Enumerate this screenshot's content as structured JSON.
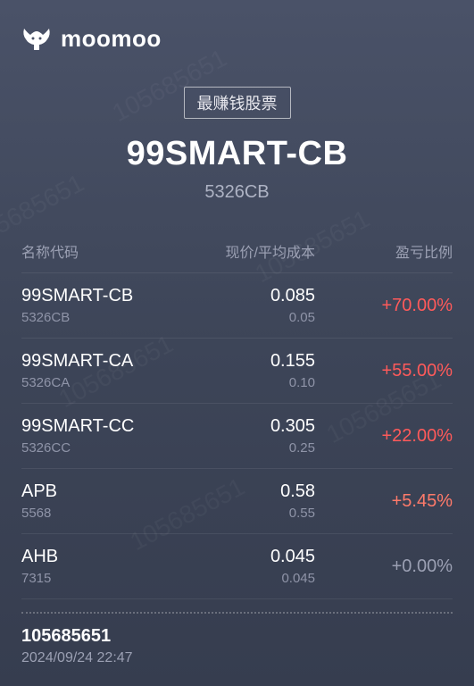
{
  "brand": {
    "name": "moomoo"
  },
  "badge": "最赚钱股票",
  "hero": {
    "title": "99SMART-CB",
    "subtitle": "5326CB"
  },
  "columns": {
    "name": "名称代码",
    "price": "现价/平均成本",
    "ratio": "盈亏比例"
  },
  "colors": {
    "gain_strong": "#ff5a5a",
    "gain_mid": "#ff7a6a",
    "neutral": "#9ba0b3"
  },
  "rows": [
    {
      "name": "99SMART-CB",
      "code": "5326CB",
      "price": "0.085",
      "avg": "0.05",
      "ratio": "+70.00%",
      "ratio_color": "#ff5a5a"
    },
    {
      "name": "99SMART-CA",
      "code": "5326CA",
      "price": "0.155",
      "avg": "0.10",
      "ratio": "+55.00%",
      "ratio_color": "#ff5a5a"
    },
    {
      "name": "99SMART-CC",
      "code": "5326CC",
      "price": "0.305",
      "avg": "0.25",
      "ratio": "+22.00%",
      "ratio_color": "#ff5a5a"
    },
    {
      "name": "APB",
      "code": "5568",
      "price": "0.58",
      "avg": "0.55",
      "ratio": "+5.45%",
      "ratio_color": "#ff7a6a"
    },
    {
      "name": "AHB",
      "code": "7315",
      "price": "0.045",
      "avg": "0.045",
      "ratio": "+0.00%",
      "ratio_color": "#9ba0b3"
    }
  ],
  "footer": {
    "id": "105685651",
    "timestamp": "2024/09/24 22:47"
  },
  "watermark_text": "105685651"
}
